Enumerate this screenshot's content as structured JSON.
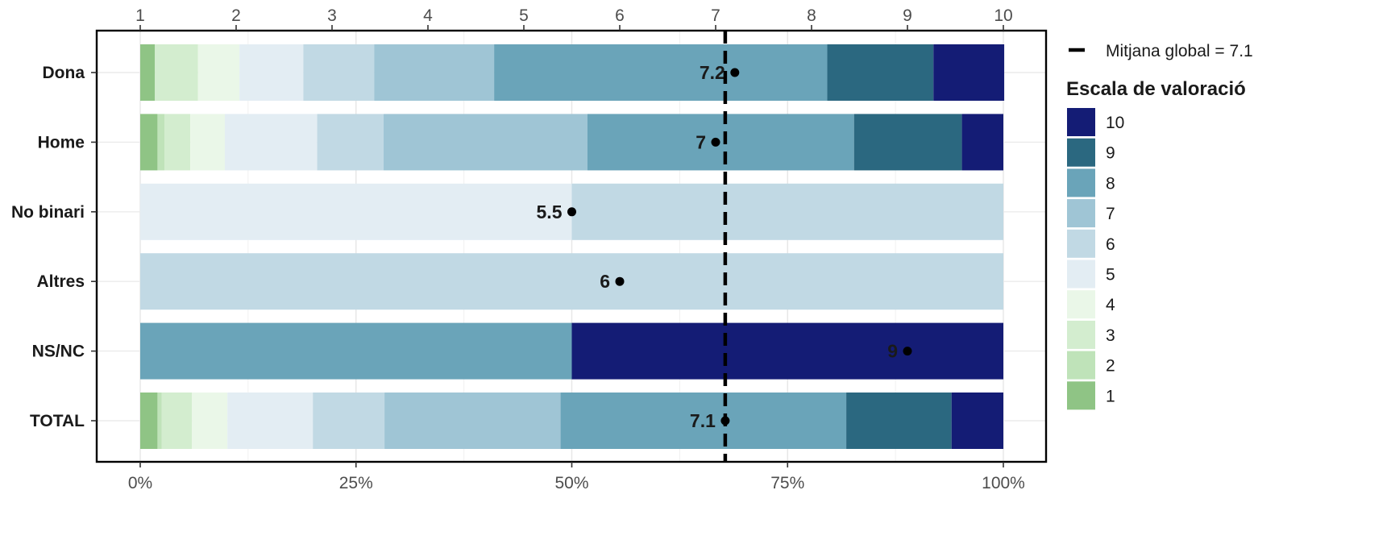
{
  "chart_data": {
    "type": "bar",
    "orientation": "horizontal-stacked-percent",
    "categories": [
      "Dona",
      "Home",
      "No binari",
      "Altres",
      "NS/NC",
      "TOTAL"
    ],
    "series": [
      {
        "name": "1",
        "color": "#8fc485",
        "values": [
          1.7,
          2.0,
          0,
          0,
          0,
          2.0
        ]
      },
      {
        "name": "2",
        "color": "#bfe3b9",
        "values": [
          0,
          0.8,
          0,
          0,
          0,
          0.5
        ]
      },
      {
        "name": "3",
        "color": "#d3edcf",
        "values": [
          5.0,
          3.0,
          0,
          0,
          0,
          3.5
        ]
      },
      {
        "name": "4",
        "color": "#eaf7e8",
        "values": [
          4.8,
          4.0,
          0,
          0,
          0,
          4.1
        ]
      },
      {
        "name": "5",
        "color": "#e3edf3",
        "values": [
          7.4,
          10.7,
          50.0,
          0,
          0,
          9.9
        ]
      },
      {
        "name": "6",
        "color": "#c1d9e4",
        "values": [
          8.2,
          7.7,
          50.0,
          100.0,
          0,
          8.3
        ]
      },
      {
        "name": "7",
        "color": "#9fc5d5",
        "values": [
          13.9,
          23.6,
          0,
          0,
          0,
          20.4
        ]
      },
      {
        "name": "8",
        "color": "#6aa4b9",
        "values": [
          38.6,
          30.9,
          0,
          0,
          50.0,
          33.1
        ]
      },
      {
        "name": "9",
        "color": "#2b6880",
        "values": [
          12.3,
          12.5,
          0,
          0,
          0,
          12.2
        ]
      },
      {
        "name": "10",
        "color": "#141c75",
        "values": [
          8.2,
          4.8,
          0,
          0,
          50.0,
          6.0
        ]
      }
    ],
    "means": [
      {
        "value": 7.2,
        "label": "7.2"
      },
      {
        "value": 7.0,
        "label": "7"
      },
      {
        "value": 5.5,
        "label": "5.5"
      },
      {
        "value": 6.0,
        "label": "6"
      },
      {
        "value": 9.0,
        "label": "9"
      },
      {
        "value": 7.1,
        "label": "7.1"
      }
    ],
    "global_mean": 7.1,
    "x_bottom": {
      "ticks": [
        0,
        25,
        50,
        75,
        100
      ],
      "labels": [
        "0%",
        "25%",
        "50%",
        "75%",
        "100%"
      ],
      "range": [
        0,
        100
      ]
    },
    "x_top": {
      "ticks": [
        1,
        2,
        3,
        4,
        5,
        6,
        7,
        8,
        9,
        10
      ],
      "labels": [
        "1",
        "2",
        "3",
        "4",
        "5",
        "6",
        "7",
        "8",
        "9",
        "10"
      ],
      "range": [
        1,
        10
      ]
    },
    "grid": true,
    "legend": {
      "placement": "right",
      "line_label": "Mitjana global =  7.1",
      "title": "Escala de valoració",
      "order": [
        "10",
        "9",
        "8",
        "7",
        "6",
        "5",
        "4",
        "3",
        "2",
        "1"
      ]
    }
  }
}
